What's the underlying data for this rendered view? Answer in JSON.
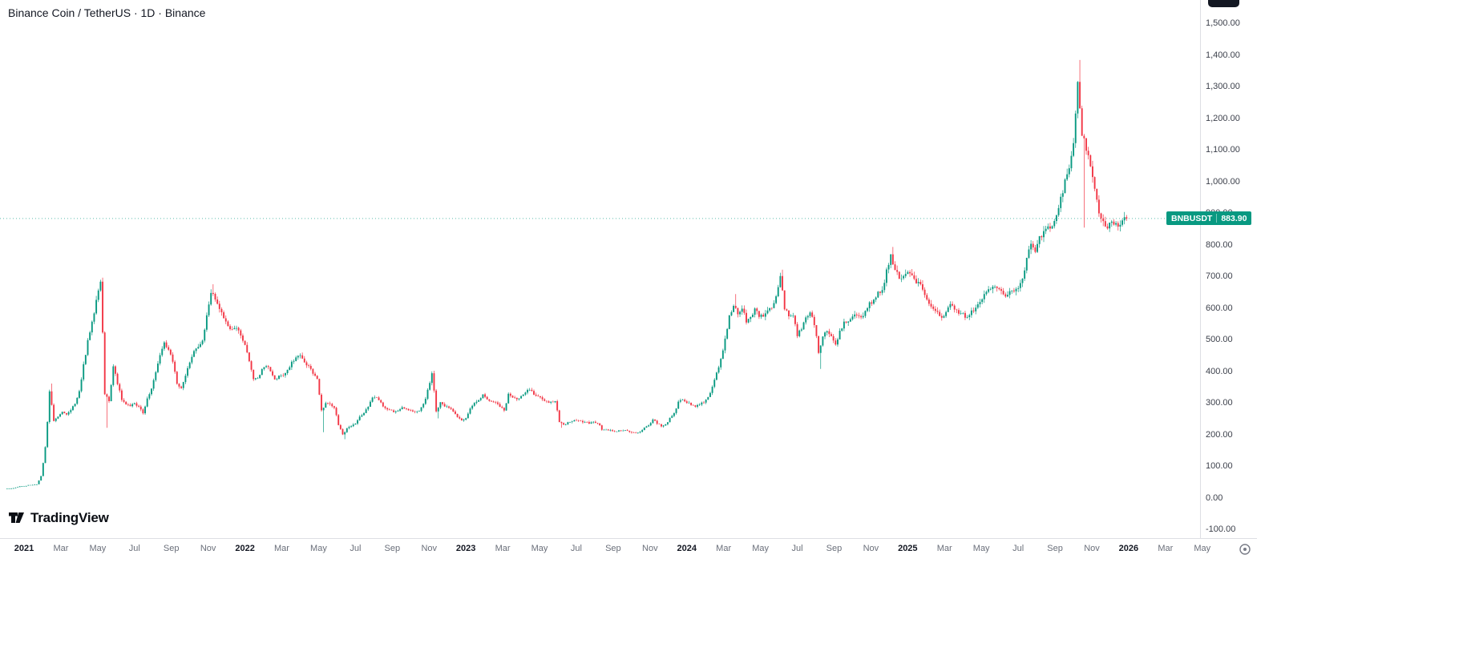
{
  "legend": {
    "symbol_name": "Binance Coin / TetherUS",
    "interval": "1D",
    "exchange": "Binance",
    "display": "Binance Coin / TetherUS · 1D · Binance"
  },
  "logo": {
    "text": "TradingView"
  },
  "price_badge": {
    "symbol": "BNBUSDT",
    "price": "883.90"
  },
  "colors": {
    "up": "#089981",
    "down": "#F23645",
    "background": "#ffffff",
    "text": "#131722",
    "axis_month": "#6a6f7a",
    "axis_tick": "#3c404b"
  },
  "price_scale": {
    "ticks": [
      {
        "value": 1500,
        "label": "1,500.00"
      },
      {
        "value": 1400,
        "label": "1,400.00"
      },
      {
        "value": 1300,
        "label": "1,300.00"
      },
      {
        "value": 1200,
        "label": "1,200.00"
      },
      {
        "value": 1100,
        "label": "1,100.00"
      },
      {
        "value": 1000,
        "label": "1,000.00"
      },
      {
        "value": 900,
        "label": "900.00"
      },
      {
        "value": 800,
        "label": "800.00"
      },
      {
        "value": 700,
        "label": "700.00"
      },
      {
        "value": 600,
        "label": "600.00"
      },
      {
        "value": 500,
        "label": "500.00"
      },
      {
        "value": 400,
        "label": "400.00"
      },
      {
        "value": 300,
        "label": "300.00"
      },
      {
        "value": 200,
        "label": "200.00"
      },
      {
        "value": 100,
        "label": "100.00"
      },
      {
        "value": 0,
        "label": "0.00"
      },
      {
        "value": -100,
        "label": "-100.00"
      }
    ]
  },
  "time_axis": {
    "labels": [
      {
        "label": "2021",
        "is_year": true
      },
      {
        "label": "Mar"
      },
      {
        "label": "May"
      },
      {
        "label": "Jul"
      },
      {
        "label": "Sep"
      },
      {
        "label": "Nov"
      },
      {
        "label": "2022",
        "is_year": true
      },
      {
        "label": "Mar"
      },
      {
        "label": "May"
      },
      {
        "label": "Jul"
      },
      {
        "label": "Sep"
      },
      {
        "label": "Nov"
      },
      {
        "label": "2023",
        "is_year": true
      },
      {
        "label": "Mar"
      },
      {
        "label": "May"
      },
      {
        "label": "Jul"
      },
      {
        "label": "Sep"
      },
      {
        "label": "Nov"
      },
      {
        "label": "2024",
        "is_year": true
      },
      {
        "label": "Mar"
      },
      {
        "label": "May"
      },
      {
        "label": "Jul"
      },
      {
        "label": "Sep"
      },
      {
        "label": "Nov"
      },
      {
        "label": "2025",
        "is_year": true
      },
      {
        "label": "Mar"
      },
      {
        "label": "May"
      },
      {
        "label": "Jul"
      },
      {
        "label": "Sep"
      },
      {
        "label": "Nov"
      },
      {
        "label": "2026",
        "is_year": true
      },
      {
        "label": "Mar"
      },
      {
        "label": "May"
      }
    ]
  },
  "chart_data": {
    "type": "candlestick",
    "title": "Binance Coin / TetherUS",
    "symbol": "BNBUSDT",
    "exchange": "Binance",
    "interval": "1D",
    "ylim": [
      -100,
      1500
    ],
    "x_start": "2020-12-07",
    "x_end": "2026-05",
    "grid": "off",
    "last_price": 883.9,
    "up_color": "#089981",
    "down_color": "#F23645",
    "sampling": "weekly closes estimated from the daily chart",
    "weekly_closes": [
      30,
      31,
      33,
      37,
      38,
      41,
      42,
      44,
      70,
      160,
      340,
      245,
      260,
      275,
      265,
      280,
      300,
      340,
      420,
      500,
      555,
      630,
      690,
      330,
      305,
      420,
      360,
      310,
      295,
      290,
      300,
      288,
      270,
      315,
      345,
      400,
      455,
      490,
      470,
      430,
      360,
      345,
      390,
      430,
      465,
      480,
      495,
      580,
      650,
      630,
      600,
      570,
      545,
      530,
      540,
      515,
      480,
      430,
      375,
      380,
      405,
      420,
      400,
      375,
      385,
      390,
      405,
      430,
      445,
      450,
      430,
      415,
      395,
      375,
      275,
      300,
      297,
      285,
      230,
      200,
      220,
      228,
      235,
      255,
      270,
      288,
      320,
      318,
      300,
      282,
      280,
      272,
      276,
      285,
      283,
      275,
      272,
      277,
      295,
      340,
      395,
      275,
      302,
      292,
      287,
      272,
      258,
      246,
      252,
      282,
      300,
      308,
      328,
      312,
      305,
      302,
      288,
      278,
      330,
      318,
      312,
      322,
      335,
      345,
      328,
      320,
      312,
      306,
      302,
      306,
      242,
      232,
      238,
      242,
      246,
      242,
      240,
      236,
      240,
      238,
      217,
      215,
      214,
      210,
      212,
      214,
      212,
      208,
      206,
      210,
      224,
      230,
      248,
      236,
      228,
      232,
      252,
      268,
      305,
      312,
      302,
      296,
      290,
      298,
      302,
      320,
      352,
      395,
      440,
      505,
      575,
      610,
      580,
      600,
      560,
      575,
      595,
      578,
      572,
      598,
      600,
      638,
      705,
      600,
      578,
      572,
      515,
      538,
      568,
      588,
      548,
      462,
      512,
      532,
      512,
      482,
      528,
      556,
      562,
      572,
      582,
      572,
      588,
      618,
      622,
      648,
      652,
      718,
      765,
      722,
      698,
      702,
      715,
      700,
      685,
      670,
      640,
      615,
      600,
      585,
      570,
      590,
      610,
      595,
      585,
      580,
      570,
      592,
      600,
      620,
      640,
      658,
      668,
      662,
      652,
      642,
      650,
      655,
      662,
      692,
      762,
      802,
      782,
      822,
      842,
      858,
      852,
      902,
      948,
      1002,
      1045,
      1120,
      1320,
      1150,
      1105,
      1048,
      975,
      905,
      868,
      852,
      878,
      862,
      870,
      883.9
    ],
    "wick_high_overrides": [
      [
        10,
        362
      ],
      [
        22,
        697
      ],
      [
        48,
        676
      ],
      [
        100,
        402
      ],
      [
        171,
        645
      ],
      [
        182,
        722
      ],
      [
        208,
        794
      ],
      [
        252,
        1385
      ]
    ],
    "wick_low_overrides": [
      [
        23,
        222
      ],
      [
        74,
        208
      ],
      [
        79,
        186
      ],
      [
        101,
        252
      ],
      [
        130,
        222
      ],
      [
        191,
        408
      ],
      [
        253,
        855
      ]
    ]
  }
}
